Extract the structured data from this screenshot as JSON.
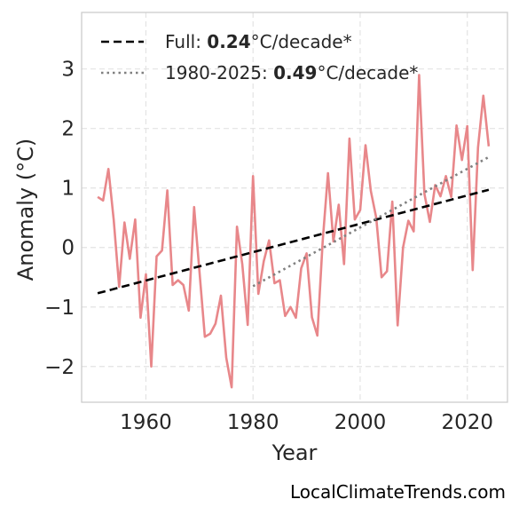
{
  "chart_data": {
    "type": "line",
    "title": "",
    "xlabel": "Year",
    "ylabel": "Anomaly (°C)",
    "xlim": [
      1948,
      2027.5
    ],
    "ylim": [
      -2.6,
      3.95
    ],
    "xticks": [
      1960,
      1980,
      2000,
      2020
    ],
    "xtick_labels": [
      "1960",
      "1980",
      "2000",
      "2020"
    ],
    "yticks": [
      -2,
      -1,
      0,
      1,
      2,
      3
    ],
    "ytick_labels": [
      "−2",
      "−1",
      "0",
      "1",
      "2",
      "3"
    ],
    "grid": true,
    "legend_position": "top-left",
    "series": [
      {
        "style": "solid",
        "color": "#e8878a",
        "x": [
          1951,
          1952,
          1953,
          1954,
          1955,
          1956,
          1957,
          1958,
          1959,
          1960,
          1961,
          1962,
          1963,
          1964,
          1965,
          1966,
          1967,
          1968,
          1969,
          1970,
          1971,
          1972,
          1973,
          1974,
          1975,
          1976,
          1977,
          1978,
          1979,
          1980,
          1981,
          1982,
          1983,
          1984,
          1985,
          1986,
          1987,
          1988,
          1989,
          1990,
          1991,
          1992,
          1993,
          1994,
          1995,
          1996,
          1997,
          1998,
          1999,
          2000,
          2001,
          2002,
          2003,
          2004,
          2005,
          2006,
          2007,
          2008,
          2009,
          2010,
          2011,
          2012,
          2013,
          2014,
          2015,
          2016,
          2017,
          2018,
          2019,
          2020,
          2021,
          2022,
          2023,
          2024
        ],
        "y": [
          0.85,
          0.79,
          1.32,
          0.46,
          -0.66,
          0.42,
          -0.19,
          0.47,
          -1.18,
          -0.45,
          -2.0,
          -0.15,
          -0.05,
          0.96,
          -0.63,
          -0.55,
          -0.63,
          -1.06,
          0.68,
          -0.4,
          -1.5,
          -1.45,
          -1.28,
          -0.81,
          -1.85,
          -2.35,
          0.35,
          -0.28,
          -1.3,
          1.2,
          -0.78,
          -0.23,
          0.12,
          -0.6,
          -0.55,
          -1.15,
          -1.0,
          -1.18,
          -0.35,
          -0.1,
          -1.17,
          -1.48,
          0.1,
          1.25,
          0.1,
          0.72,
          -0.28,
          1.83,
          0.47,
          0.63,
          1.72,
          0.95,
          0.5,
          -0.5,
          -0.4,
          0.77,
          -1.31,
          0.0,
          0.45,
          0.27,
          2.9,
          0.9,
          0.43,
          1.05,
          0.86,
          1.2,
          0.85,
          2.05,
          1.47,
          2.04,
          -0.38,
          1.68,
          2.55,
          1.7
        ]
      },
      {
        "name": "Full",
        "style": "dashed",
        "color": "#000000",
        "x": [
          1951,
          2024
        ],
        "y": [
          -0.77,
          0.97
        ]
      },
      {
        "name": "1980-2025",
        "style": "dotted",
        "color": "#808080",
        "x": [
          1980,
          2024
        ],
        "y": [
          -0.65,
          1.52
        ]
      }
    ],
    "legend": [
      {
        "prefix": "Full: ",
        "value": "0.24",
        "suffix": "°C/decade*"
      },
      {
        "prefix": "1980-2025: ",
        "value": "0.49",
        "suffix": "°C/decade*"
      }
    ]
  },
  "credit": "LocalClimateTrends.com"
}
